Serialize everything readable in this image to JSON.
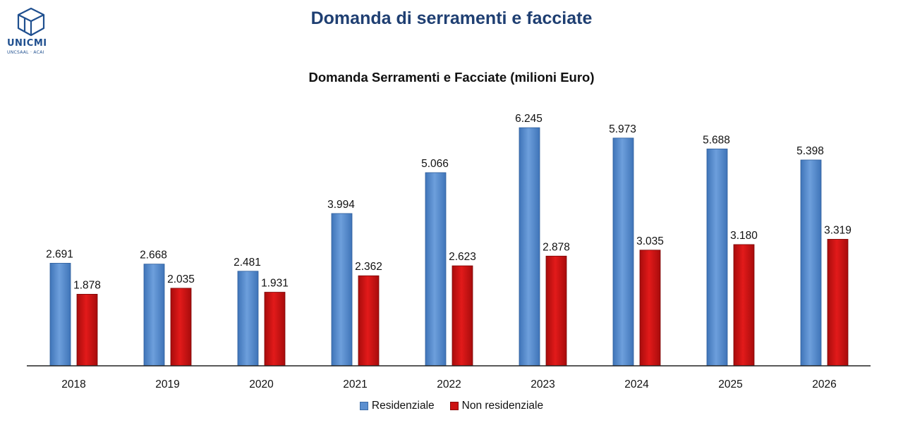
{
  "header": {
    "title": "Domanda di serramenti e facciate",
    "logo_name": "UNICMI",
    "logo_sub": "UNCSAAL · ACAI"
  },
  "colors": {
    "title": "#1f3f72",
    "residenziale": "#5b8fd0",
    "non_residenziale": "#cc1212"
  },
  "chart_data": {
    "type": "bar",
    "title": "Domanda Serramenti e Facciate (milioni Euro)",
    "xlabel": "",
    "ylabel": "",
    "ylim": [
      0,
      7000
    ],
    "grid": false,
    "legend_position": "bottom",
    "categories": [
      "2018",
      "2019",
      "2020",
      "2021",
      "2022",
      "2023",
      "2024",
      "2025",
      "2026"
    ],
    "series": [
      {
        "name": "Residenziale",
        "values": [
          2691,
          2668,
          2481,
          3994,
          5066,
          6245,
          5973,
          5688,
          5398
        ],
        "labels": [
          "2.691",
          "2.668",
          "2.481",
          "3.994",
          "5.066",
          "6.245",
          "5.973",
          "5.688",
          "5.398"
        ]
      },
      {
        "name": "Non residenziale",
        "values": [
          1878,
          2035,
          1931,
          2362,
          2623,
          2878,
          3035,
          3180,
          3319
        ],
        "labels": [
          "1.878",
          "2.035",
          "1.931",
          "2.362",
          "2.623",
          "2.878",
          "3.035",
          "3.180",
          "3.319"
        ]
      }
    ]
  }
}
